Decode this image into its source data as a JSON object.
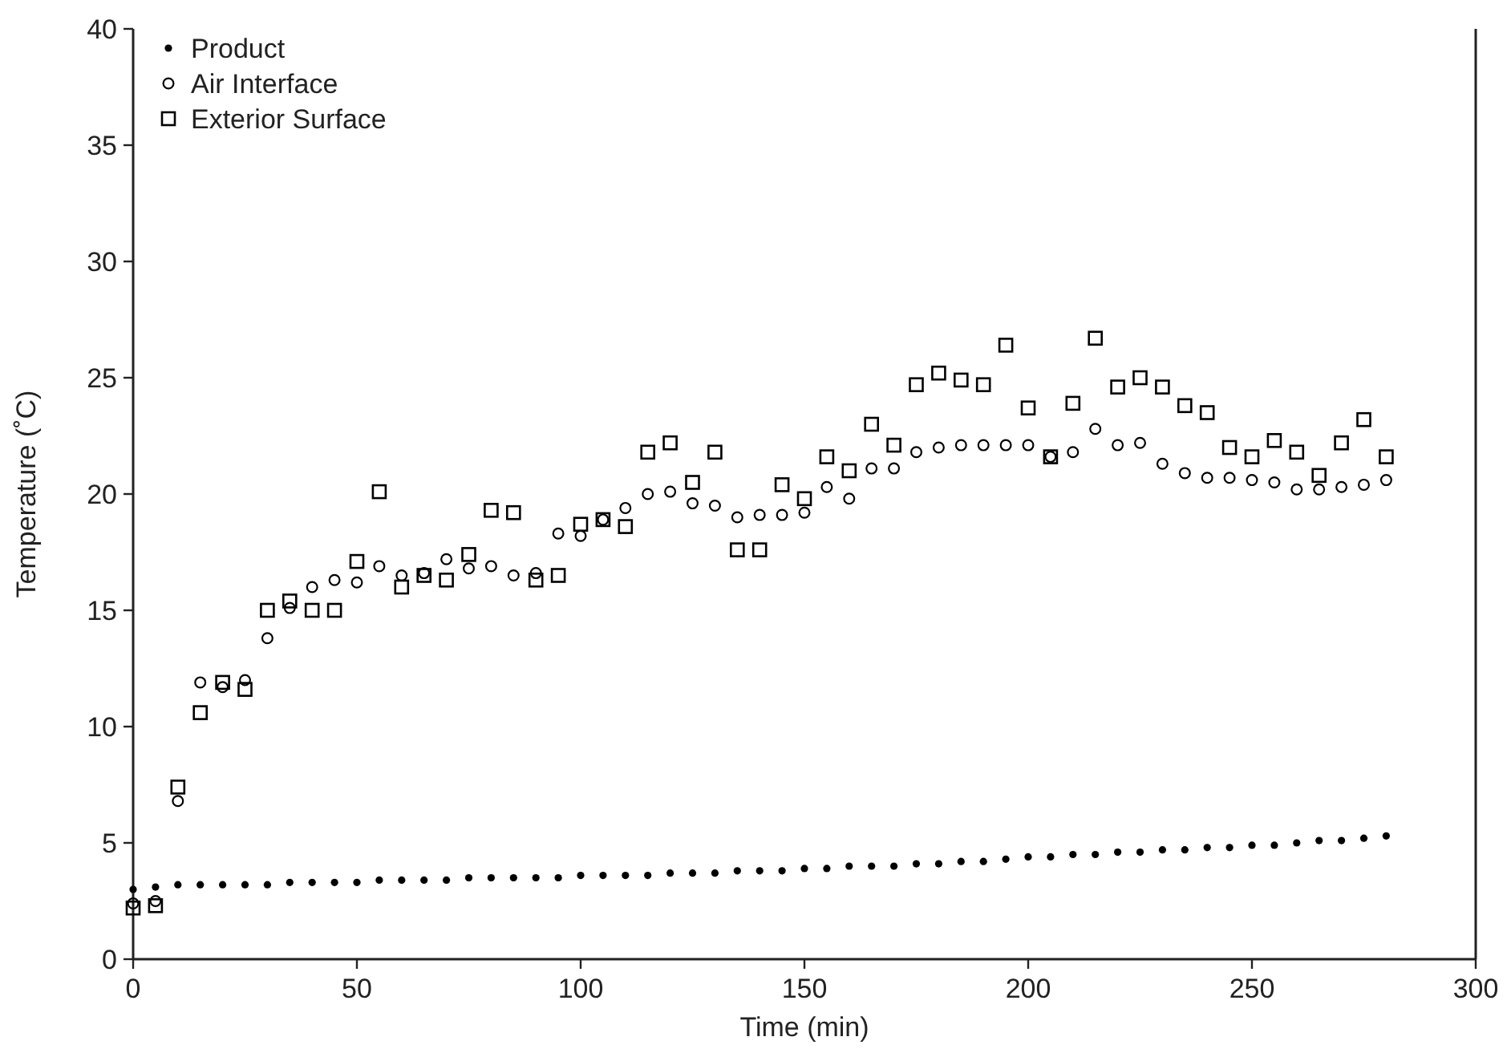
{
  "chart_data": {
    "type": "scatter",
    "xlabel": "Time (min)",
    "ylabel": "Temperature (˚C)",
    "x": [
      0,
      5,
      10,
      15,
      20,
      25,
      30,
      35,
      40,
      45,
      50,
      55,
      60,
      65,
      70,
      75,
      80,
      85,
      90,
      95,
      100,
      105,
      110,
      115,
      120,
      125,
      130,
      135,
      140,
      145,
      150,
      155,
      160,
      165,
      170,
      175,
      180,
      185,
      190,
      195,
      200,
      205,
      210,
      215,
      220,
      225,
      230,
      235,
      240,
      245,
      250,
      255,
      260,
      265,
      270,
      275,
      280
    ],
    "xlim": [
      0,
      300
    ],
    "xticks": [
      0,
      50,
      100,
      150,
      200,
      250,
      300
    ],
    "ylim": [
      0,
      40
    ],
    "yticks": [
      0,
      5,
      10,
      15,
      20,
      25,
      30,
      35,
      40
    ],
    "grid": false,
    "legend": "top left",
    "series": [
      {
        "name": "Product",
        "color": "#000000",
        "marker": "circle",
        "values": [
          3.0,
          3.1,
          3.2,
          3.2,
          3.2,
          3.2,
          3.2,
          3.3,
          3.3,
          3.3,
          3.3,
          3.4,
          3.4,
          3.4,
          3.4,
          3.5,
          3.5,
          3.5,
          3.5,
          3.5,
          3.6,
          3.6,
          3.6,
          3.6,
          3.7,
          3.7,
          3.7,
          3.8,
          3.8,
          3.8,
          3.9,
          3.9,
          4.0,
          4.0,
          4.0,
          4.1,
          4.1,
          4.2,
          4.2,
          4.3,
          4.4,
          4.4,
          4.5,
          4.5,
          4.6,
          4.6,
          4.7,
          4.7,
          4.8,
          4.8,
          4.9,
          4.9,
          5.0,
          5.1,
          5.1,
          5.2,
          5.3
        ]
      },
      {
        "name": "Air Interface",
        "color": "#000000",
        "marker": "circle",
        "values": [
          2.4,
          2.5,
          6.8,
          11.9,
          11.7,
          12.0,
          13.8,
          15.1,
          16.0,
          16.3,
          16.2,
          16.9,
          16.5,
          16.6,
          17.2,
          16.8,
          16.9,
          16.5,
          16.6,
          18.3,
          18.2,
          18.9,
          19.4,
          20.0,
          20.1,
          19.6,
          19.5,
          19.0,
          19.1,
          19.1,
          19.2,
          20.3,
          19.8,
          21.1,
          21.1,
          21.8,
          22.0,
          22.1,
          22.1,
          22.1,
          22.1,
          21.6,
          21.8,
          22.8,
          22.1,
          22.2,
          21.3,
          20.9,
          20.7,
          20.7,
          20.6,
          20.5,
          20.2,
          20.2,
          20.3,
          20.4,
          20.6
        ]
      },
      {
        "name": "Exterior Surface",
        "color": "#000000",
        "marker": "square",
        "values": [
          2.2,
          2.3,
          7.4,
          10.6,
          11.9,
          11.6,
          15.0,
          15.4,
          15.0,
          15.0,
          17.1,
          20.1,
          16.0,
          16.5,
          16.3,
          17.4,
          19.3,
          19.2,
          16.3,
          16.5,
          18.7,
          18.9,
          18.6,
          21.8,
          22.2,
          20.5,
          21.8,
          17.6,
          17.6,
          20.4,
          19.8,
          21.6,
          21.0,
          23.0,
          22.1,
          24.7,
          25.2,
          24.9,
          24.7,
          26.4,
          23.7,
          21.6,
          23.9,
          26.7,
          24.6,
          25.0,
          24.6,
          23.8,
          23.5,
          22.0,
          21.6,
          22.3,
          21.8,
          20.8,
          22.2,
          23.2,
          21.6
        ]
      }
    ]
  }
}
